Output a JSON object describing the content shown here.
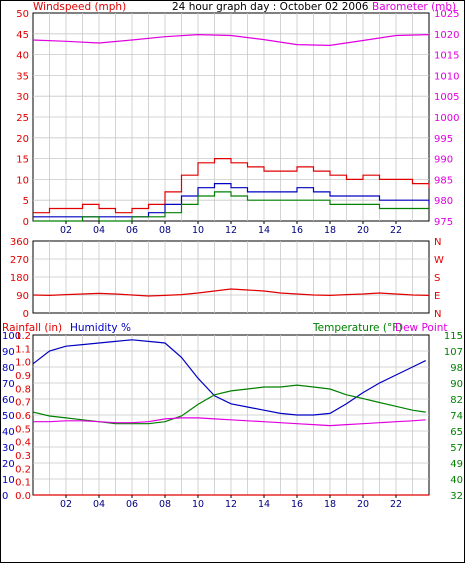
{
  "title": "24 hour graph day : October 02 2006",
  "colors": {
    "wind": "#e00000",
    "wind_avg": "#0000c0",
    "wind_low": "#008000",
    "baro": "#e000e0",
    "dir": "#e00000",
    "humidity": "#0000c0",
    "temperature": "#008000",
    "dewpoint": "#e000e0",
    "rainfall": "#e00000",
    "grid": "#c8c8c8",
    "axis": "#000000"
  },
  "chart_data": [
    {
      "type": "line",
      "name": "wind-baro-panel",
      "left_axis_label": "Windspeed (mph)",
      "right_axis_label": "Barometer (mb)",
      "x_ticks": [
        "02",
        "04",
        "06",
        "08",
        "10",
        "12",
        "14",
        "16",
        "18",
        "20",
        "22"
      ],
      "xlim": [
        0,
        24
      ],
      "ylim_left": [
        0,
        50
      ],
      "left_ticks": [
        "0",
        "5",
        "10",
        "15",
        "20",
        "25",
        "30",
        "35",
        "40",
        "45",
        "50"
      ],
      "ylim_right": [
        975,
        1025
      ],
      "right_ticks": [
        "975",
        "980",
        "985",
        "990",
        "995",
        "1000",
        "1005",
        "1010",
        "1015",
        "1020",
        "1025"
      ],
      "grid": true,
      "series": [
        {
          "key": "gust",
          "axis": "left",
          "color_key": "wind",
          "x": [
            0,
            1,
            2,
            3,
            4,
            5,
            6,
            7,
            8,
            9,
            10,
            11,
            12,
            13,
            14,
            15,
            16,
            17,
            18,
            19,
            20,
            21,
            22,
            23,
            24
          ],
          "values": [
            2,
            3,
            3,
            4,
            3,
            2,
            3,
            4,
            7,
            11,
            14,
            15,
            14,
            13,
            12,
            12,
            13,
            12,
            11,
            10,
            11,
            10,
            10,
            9,
            8
          ]
        },
        {
          "key": "average",
          "axis": "left",
          "color_key": "wind_avg",
          "x": [
            0,
            1,
            2,
            3,
            4,
            5,
            6,
            7,
            8,
            9,
            10,
            11,
            12,
            13,
            14,
            15,
            16,
            17,
            18,
            19,
            20,
            21,
            22,
            23,
            24
          ],
          "values": [
            1,
            1,
            1,
            1,
            1,
            1,
            1,
            2,
            4,
            6,
            8,
            9,
            8,
            7,
            7,
            7,
            8,
            7,
            6,
            6,
            6,
            5,
            5,
            5,
            4
          ]
        },
        {
          "key": "low",
          "axis": "left",
          "color_key": "wind_low",
          "x": [
            0,
            1,
            2,
            3,
            4,
            5,
            6,
            7,
            8,
            9,
            10,
            11,
            12,
            13,
            14,
            15,
            16,
            17,
            18,
            19,
            20,
            21,
            22,
            23,
            24
          ],
          "values": [
            0,
            0,
            0,
            1,
            0,
            0,
            1,
            1,
            2,
            4,
            6,
            7,
            6,
            5,
            5,
            5,
            5,
            5,
            4,
            4,
            4,
            3,
            3,
            3,
            3
          ]
        },
        {
          "key": "barometer",
          "axis": "right",
          "color_key": "baro",
          "x": [
            0,
            2,
            4,
            6,
            8,
            10,
            12,
            14,
            16,
            18,
            20,
            22,
            24
          ],
          "values": [
            1018.5,
            1018.2,
            1017.8,
            1018.5,
            1019.3,
            1019.8,
            1019.6,
            1018.6,
            1017.4,
            1017.2,
            1018.4,
            1019.6,
            1019.8
          ]
        }
      ]
    },
    {
      "type": "scatter",
      "name": "wind-direction-panel",
      "ylim": [
        0,
        360
      ],
      "left_ticks": [
        "0",
        "90",
        "180",
        "270",
        "360"
      ],
      "right_ticks": [
        "N",
        "W",
        "S",
        "E",
        "N"
      ],
      "x_ticks": [
        "02",
        "04",
        "06",
        "08",
        "10",
        "12",
        "14",
        "16",
        "18",
        "20",
        "22"
      ],
      "xlim": [
        0,
        24
      ],
      "grid": true,
      "series": [
        {
          "key": "direction",
          "color_key": "dir",
          "x": [
            0,
            1,
            2,
            3,
            4,
            5,
            6,
            7,
            8,
            9,
            10,
            11,
            12,
            13,
            14,
            15,
            16,
            17,
            18,
            19,
            20,
            21,
            22,
            23,
            24
          ],
          "values": [
            90,
            88,
            92,
            95,
            98,
            95,
            90,
            85,
            88,
            92,
            100,
            110,
            120,
            115,
            110,
            100,
            95,
            90,
            88,
            92,
            95,
            100,
            95,
            90,
            88
          ]
        }
      ]
    },
    {
      "type": "line",
      "name": "rain-humidity-temp-panel",
      "left_axis_label": "Rainfall (in)",
      "humidity_label": "Humidity %",
      "temperature_label": "Temperature (°F)",
      "dewpoint_label": "Dew Point",
      "x_ticks": [
        "02",
        "04",
        "06",
        "08",
        "10",
        "12",
        "14",
        "16",
        "18",
        "20",
        "22"
      ],
      "xlim": [
        0,
        24
      ],
      "humidity_ticks": [
        "0",
        "10",
        "20",
        "30",
        "40",
        "50",
        "60",
        "70",
        "80",
        "90",
        "100"
      ],
      "humidity_lim": [
        0,
        100
      ],
      "rain_ticks": [
        "0.0",
        "0.1",
        "0.2",
        "0.3",
        "0.4",
        "0.5",
        "0.6",
        "0.7",
        "0.8",
        "0.9",
        "1.0",
        "1.1",
        "1.2"
      ],
      "rain_lim": [
        0,
        1.2
      ],
      "temp_ticks": [
        "32",
        "40",
        "49",
        "57",
        "65",
        "74",
        "82",
        "90",
        "98",
        "107",
        "115"
      ],
      "temp_lim": [
        32,
        115
      ],
      "grid": true,
      "series": [
        {
          "key": "humidity",
          "axis": "humidity",
          "color_key": "humidity",
          "x": [
            0,
            1,
            2,
            3,
            4,
            5,
            6,
            7,
            8,
            9,
            10,
            11,
            12,
            13,
            14,
            15,
            16,
            17,
            18,
            19,
            20,
            21,
            22,
            23,
            23.8
          ],
          "values": [
            82,
            90,
            93,
            94,
            95,
            96,
            97,
            96,
            95,
            86,
            73,
            62,
            57,
            55,
            53,
            51,
            50,
            50,
            51,
            57,
            64,
            70,
            75,
            80,
            84
          ]
        },
        {
          "key": "temperature",
          "axis": "temperature",
          "color_key": "temperature",
          "x": [
            0,
            1,
            2,
            3,
            4,
            5,
            6,
            7,
            8,
            9,
            10,
            11,
            12,
            13,
            14,
            15,
            16,
            17,
            18,
            19,
            20,
            21,
            22,
            23,
            23.8
          ],
          "values": [
            75,
            73,
            72,
            71,
            70,
            69,
            69,
            69,
            70,
            73,
            79,
            84,
            86,
            87,
            88,
            88,
            89,
            88,
            87,
            84,
            82,
            80,
            78,
            76,
            75
          ]
        },
        {
          "key": "dewpoint",
          "axis": "temperature",
          "color_key": "dewpoint",
          "x": [
            0,
            1,
            2,
            3,
            4,
            5,
            6,
            7,
            8,
            9,
            10,
            11,
            12,
            13,
            14,
            15,
            16,
            17,
            18,
            19,
            20,
            21,
            22,
            23,
            23.8
          ],
          "values": [
            70,
            70,
            70.5,
            70.5,
            70,
            69.5,
            69.5,
            70,
            71.5,
            72,
            72,
            71.5,
            71,
            70.5,
            70,
            69.5,
            69,
            68.5,
            68,
            68.5,
            69,
            69.5,
            70,
            70.5,
            71
          ]
        },
        {
          "key": "rainfall",
          "axis": "rain",
          "color_key": "rainfall",
          "x": [
            0,
            24
          ],
          "values": [
            0,
            0
          ]
        }
      ]
    }
  ]
}
